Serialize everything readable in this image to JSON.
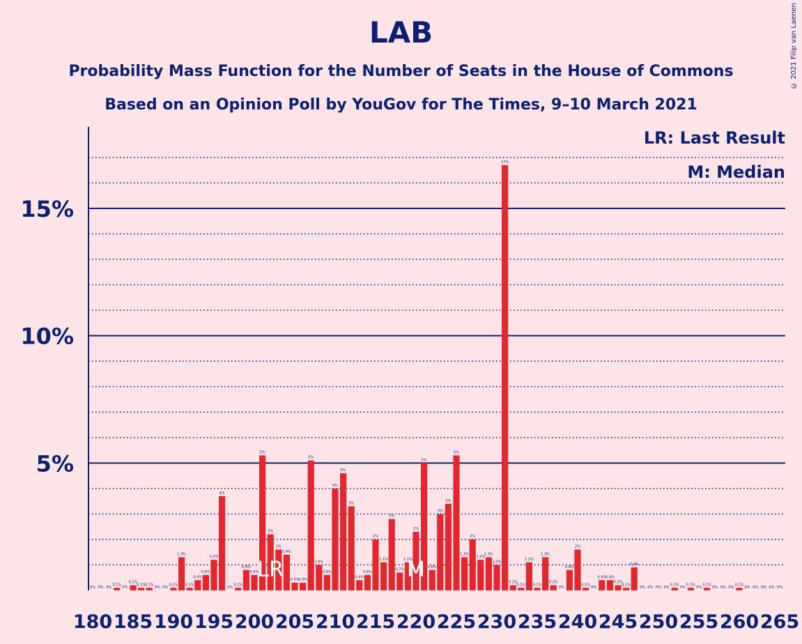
{
  "header": {
    "title": "LAB",
    "subtitle1": "Probability Mass Function for the Number of Seats in the House of Commons",
    "subtitle2": "Based on an Opinion Poll by YouGov for The Times, 9–10 March 2021",
    "copyright": "© 2021 Filip van Laenen"
  },
  "legend": {
    "last_result": "LR: Last Result",
    "median": "M: Median"
  },
  "colors": {
    "background": "#fce4e8",
    "bar": "#e0282e",
    "axis": "#0d1f6e"
  },
  "chart_data": {
    "type": "bar",
    "title": "LAB",
    "xlabel": "",
    "ylabel": "",
    "ylim": [
      0,
      18
    ],
    "yticks": [
      {
        "value": 5,
        "label": "5%"
      },
      {
        "value": 10,
        "label": "10%"
      },
      {
        "value": 15,
        "label": "15%"
      }
    ],
    "xticks": [
      "180",
      "185",
      "190",
      "195",
      "200",
      "205",
      "210",
      "215",
      "220",
      "225",
      "230",
      "235",
      "240",
      "245",
      "250",
      "255",
      "260",
      "265"
    ],
    "last_result": {
      "seat": 202,
      "label": "LR"
    },
    "median": {
      "seat": 220,
      "label": "M"
    },
    "seats": [
      180,
      181,
      182,
      183,
      184,
      185,
      186,
      187,
      188,
      189,
      190,
      191,
      192,
      193,
      194,
      195,
      196,
      197,
      198,
      199,
      200,
      201,
      202,
      203,
      204,
      205,
      206,
      207,
      208,
      209,
      210,
      211,
      212,
      213,
      214,
      215,
      216,
      217,
      218,
      219,
      220,
      221,
      222,
      223,
      224,
      225,
      226,
      227,
      228,
      229,
      230,
      231,
      232,
      233,
      234,
      235,
      236,
      237,
      238,
      239,
      240,
      241,
      242,
      243,
      244,
      245,
      246,
      247,
      248,
      249,
      250,
      251,
      252,
      253,
      254,
      255,
      256,
      257,
      258,
      259,
      260,
      261,
      262,
      263,
      264,
      265
    ],
    "values": [
      0,
      0,
      0,
      0.1,
      0,
      0.2,
      0.1,
      0.1,
      0,
      0,
      0.1,
      1.3,
      0.1,
      0.4,
      0.6,
      1.2,
      3.7,
      0,
      0.1,
      0.8,
      0.6,
      5.3,
      2.2,
      1.6,
      1.4,
      0.3,
      0.3,
      5.1,
      1,
      0.6,
      4,
      4.6,
      3.3,
      0.4,
      0.6,
      2,
      1.1,
      2.8,
      0.7,
      1.1,
      2.3,
      5,
      0.8,
      3,
      3.4,
      5.3,
      1.3,
      2,
      1.2,
      1.3,
      1,
      16.7,
      0.2,
      0.1,
      1.1,
      0.1,
      1.3,
      0.2,
      0,
      0.8,
      1.6,
      0.1,
      0,
      0.4,
      0.4,
      0.2,
      0.1,
      0.9,
      0,
      0,
      0,
      0,
      0.1,
      0,
      0.1,
      0,
      0.1,
      0,
      0,
      0,
      0.1,
      0,
      0,
      0,
      0,
      0
    ],
    "data_labels": [
      "0%",
      "0%",
      "0%",
      "0.1%",
      "0%",
      "0.2%",
      "0.1%",
      "0.1%",
      "0%",
      "0%",
      "0.1%",
      "1.3%",
      "0.1%",
      "0.4%",
      "0.6%",
      "1.2%",
      "4%",
      "0%",
      "0.1%",
      "0.8%",
      "0.6%",
      "5%",
      "2%",
      "2%",
      "1.4%",
      "0.3%",
      "0.3%",
      "5%",
      "1.0%",
      "0.6%",
      "4%",
      "5%",
      "3%",
      "0.4%",
      "0.6%",
      "2%",
      "1.1%",
      "3%",
      "0.7%",
      "1.1%",
      "2%",
      "5%",
      "0.8%",
      "3%",
      "3%",
      "5%",
      "1.3%",
      "2%",
      "1.2%",
      "1.3%",
      "1.0%",
      "17%",
      "0.2%",
      "0.1%",
      "1.1%",
      "0.1%",
      "1.3%",
      "0.2%",
      "0%",
      "0.8%",
      "2%",
      "0.1%",
      "0%",
      "0.4%",
      "0.4%",
      "0.2%",
      "0.1%",
      "0.9%",
      "0%",
      "0%",
      "0%",
      "0%",
      "0.1%",
      "0%",
      "0.1%",
      "0%",
      "0.1%",
      "0%",
      "0%",
      "0%",
      "0.1%",
      "0%",
      "0%",
      "0%",
      "0%",
      "0%"
    ]
  }
}
